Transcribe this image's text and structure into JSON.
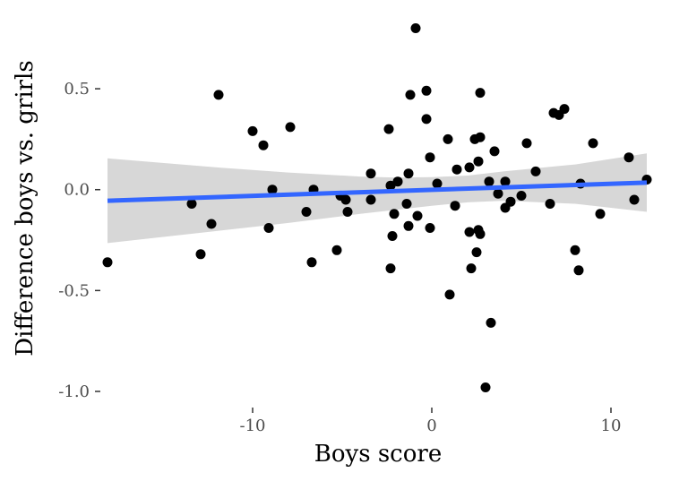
{
  "chart_data": {
    "type": "scatter",
    "xlabel": "Boys score",
    "ylabel": "Difference boys vs. grirls",
    "xlim": [
      -18.5,
      12.5
    ],
    "ylim": [
      -1.08,
      0.86
    ],
    "xticks": [
      -10,
      0,
      10
    ],
    "xtick_labels": [
      "-10",
      "0",
      "10"
    ],
    "yticks": [
      0.5,
      0.0,
      -0.5,
      -1.0
    ],
    "ytick_labels": [
      "0.5",
      "0.0",
      "-0.5",
      "-1.0"
    ],
    "grid": false,
    "points": [
      [
        -18.1,
        -0.36
      ],
      [
        -13.4,
        -0.07
      ],
      [
        -12.9,
        -0.32
      ],
      [
        -12.3,
        -0.17
      ],
      [
        -11.9,
        0.47
      ],
      [
        -10.0,
        0.29
      ],
      [
        -9.4,
        0.22
      ],
      [
        -9.1,
        -0.19
      ],
      [
        -8.9,
        0.0
      ],
      [
        -7.9,
        0.31
      ],
      [
        -7.0,
        -0.11
      ],
      [
        -6.6,
        0.0
      ],
      [
        -6.7,
        -0.36
      ],
      [
        -5.3,
        -0.3
      ],
      [
        -5.1,
        -0.03
      ],
      [
        -4.8,
        -0.05
      ],
      [
        -4.7,
        -0.11
      ],
      [
        -3.4,
        0.08
      ],
      [
        -3.4,
        -0.05
      ],
      [
        -2.4,
        0.3
      ],
      [
        -2.3,
        0.02
      ],
      [
        -2.2,
        -0.23
      ],
      [
        -2.3,
        -0.39
      ],
      [
        -2.1,
        -0.12
      ],
      [
        -1.9,
        0.04
      ],
      [
        -1.4,
        -0.07
      ],
      [
        -1.3,
        -0.18
      ],
      [
        -1.3,
        0.08
      ],
      [
        -1.2,
        0.47
      ],
      [
        -0.9,
        0.8
      ],
      [
        -0.8,
        -0.13
      ],
      [
        -0.3,
        0.35
      ],
      [
        -0.3,
        0.49
      ],
      [
        -0.1,
        0.16
      ],
      [
        -0.1,
        -0.19
      ],
      [
        0.3,
        0.03
      ],
      [
        0.9,
        0.25
      ],
      [
        1.0,
        -0.52
      ],
      [
        1.3,
        -0.08
      ],
      [
        1.4,
        0.1
      ],
      [
        2.1,
        0.11
      ],
      [
        2.1,
        -0.21
      ],
      [
        2.2,
        -0.39
      ],
      [
        2.4,
        0.25
      ],
      [
        2.5,
        -0.31
      ],
      [
        2.6,
        -0.2
      ],
      [
        2.6,
        0.14
      ],
      [
        2.7,
        0.26
      ],
      [
        2.7,
        0.48
      ],
      [
        2.7,
        -0.22
      ],
      [
        3.0,
        -0.98
      ],
      [
        3.2,
        0.04
      ],
      [
        3.3,
        -0.66
      ],
      [
        3.5,
        0.19
      ],
      [
        3.7,
        -0.02
      ],
      [
        4.1,
        -0.09
      ],
      [
        4.1,
        0.04
      ],
      [
        4.4,
        -0.06
      ],
      [
        5.0,
        -0.03
      ],
      [
        5.3,
        0.23
      ],
      [
        5.8,
        0.09
      ],
      [
        6.6,
        -0.07
      ],
      [
        6.8,
        0.38
      ],
      [
        7.1,
        0.37
      ],
      [
        7.4,
        0.4
      ],
      [
        8.0,
        -0.3
      ],
      [
        8.2,
        -0.4
      ],
      [
        8.3,
        0.03
      ],
      [
        9.0,
        0.23
      ],
      [
        9.4,
        -0.12
      ],
      [
        11.0,
        0.16
      ],
      [
        11.3,
        -0.05
      ],
      [
        12.0,
        0.05
      ]
    ],
    "fit_line": {
      "x": [
        -18.1,
        12.0
      ],
      "y": [
        -0.055,
        0.035
      ]
    },
    "confidence_band": {
      "x": [
        -18.1,
        -12,
        -8,
        -4,
        -2,
        0,
        2,
        4,
        8,
        12.0
      ],
      "upper": [
        0.155,
        0.11,
        0.085,
        0.065,
        0.06,
        0.062,
        0.07,
        0.09,
        0.125,
        0.18
      ],
      "lower": [
        -0.265,
        -0.205,
        -0.165,
        -0.12,
        -0.1,
        -0.08,
        -0.063,
        -0.055,
        -0.07,
        -0.11
      ]
    },
    "colors": {
      "points": "#000000",
      "line": "#3366ff",
      "band": "#bdbdbd"
    }
  }
}
